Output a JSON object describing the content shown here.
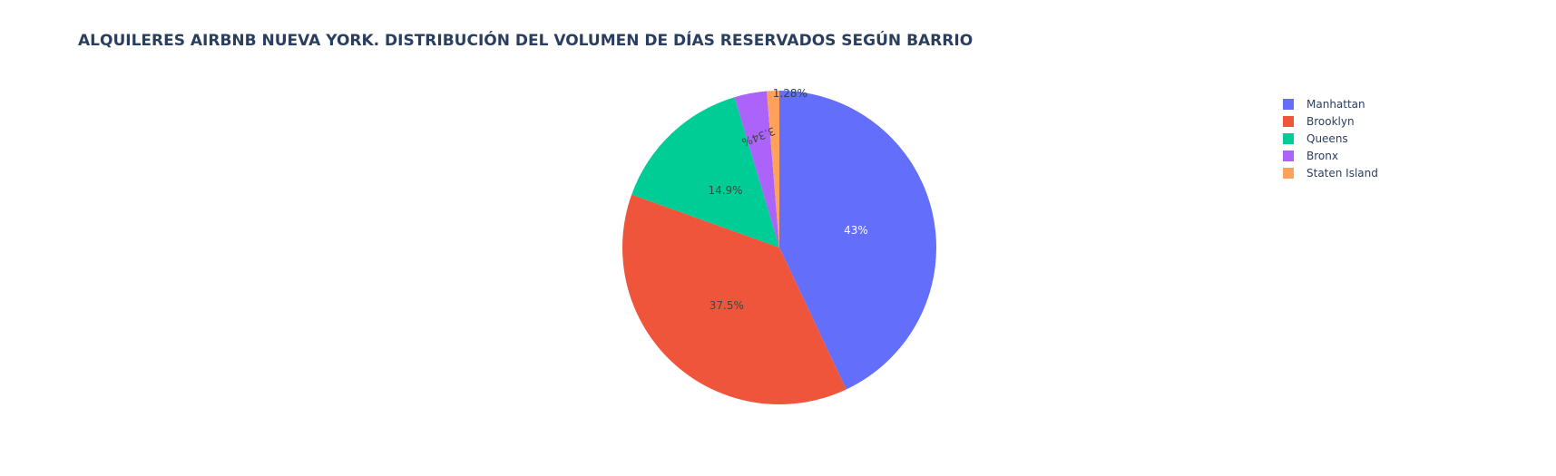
{
  "chart_data": {
    "type": "pie",
    "title": "ALQUILERES AIRBNB NUEVA YORK. DISTRIBUCIÓN DEL VOLUMEN DE DÍAS RESERVADOS SEGÚN BARRIO",
    "legend_position": "top-right",
    "slices": [
      {
        "label": "Manhattan",
        "percent": 43,
        "percent_label": "43%",
        "color": "#636efa",
        "text_color": "#ffffff"
      },
      {
        "label": "Brooklyn",
        "percent": 37.5,
        "percent_label": "37.5%",
        "color": "#ef553b",
        "text_color": "#444444"
      },
      {
        "label": "Queens",
        "percent": 14.9,
        "percent_label": "14.9%",
        "color": "#00cc96",
        "text_color": "#444444"
      },
      {
        "label": "Bronx",
        "percent": 3.34,
        "percent_label": "3.34%",
        "color": "#ab63fa",
        "text_color": "#444444"
      },
      {
        "label": "Staten Island",
        "percent": 1.28,
        "percent_label": "1.28%",
        "color": "#ffa15a",
        "text_color": "#2a3f5f"
      }
    ]
  }
}
